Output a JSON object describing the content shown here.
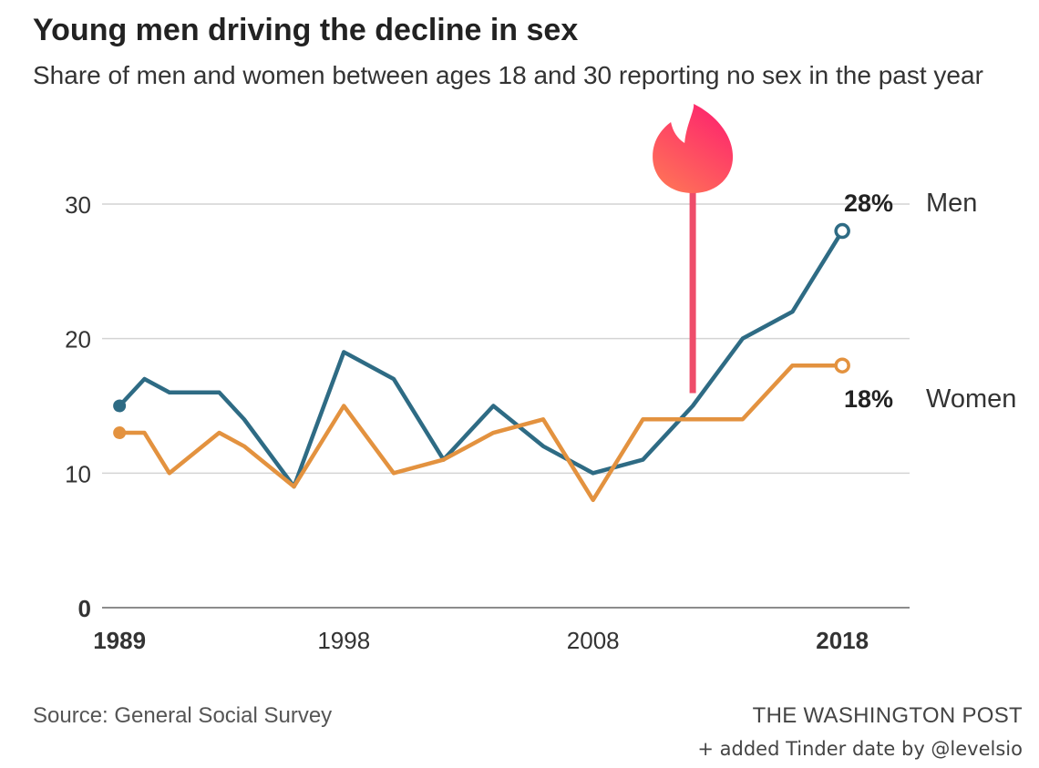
{
  "header": {
    "title": "Young men driving the decline in sex",
    "subtitle": "Share of men and women between ages 18 and 30 reporting no sex in the past year"
  },
  "footer": {
    "source": "Source: General Social Survey",
    "publisher": "THE WASHINGTON POST",
    "credit": "+ added Tinder date by @levelsio"
  },
  "annotation": {
    "icon": "tinder-flame-icon",
    "marker_color": "#ee4d6a",
    "x": 2012
  },
  "chart_data": {
    "type": "line",
    "title": "Young men driving the decline in sex",
    "subtitle": "Share of men and women between ages 18 and 30 reporting no sex in the past year",
    "xlabel": "",
    "ylabel": "",
    "xlim": [
      1988.3,
      2020.7
    ],
    "ylim": [
      0,
      30
    ],
    "yticks": [
      0,
      10,
      20,
      30
    ],
    "yticklabels": [
      "0",
      "10",
      "20",
      "30"
    ],
    "xticks": [
      1989,
      1998,
      2008,
      2018
    ],
    "xticklabels": [
      "1989",
      "1998",
      "2008",
      "2018"
    ],
    "grid": true,
    "series": [
      {
        "name": "Men",
        "color": "#2e6b84",
        "x": [
          1989,
          1990,
          1991,
          1993,
          1994,
          1996,
          1998,
          2000,
          2002,
          2004,
          2006,
          2008,
          2010,
          2012,
          2014,
          2016,
          2018
        ],
        "y": [
          15,
          17,
          16,
          16,
          14,
          9,
          19,
          17,
          11,
          15,
          12,
          10,
          11,
          15,
          20,
          22,
          28
        ],
        "end_label": "28%"
      },
      {
        "name": "Women",
        "color": "#e3923f",
        "x": [
          1989,
          1990,
          1991,
          1993,
          1994,
          1996,
          1998,
          2000,
          2002,
          2004,
          2006,
          2008,
          2010,
          2012,
          2014,
          2016,
          2018
        ],
        "y": [
          13,
          13,
          10,
          13,
          12,
          9,
          15,
          10,
          11,
          13,
          14,
          8,
          14,
          14,
          14,
          18,
          18
        ],
        "end_label": "18%"
      }
    ]
  }
}
